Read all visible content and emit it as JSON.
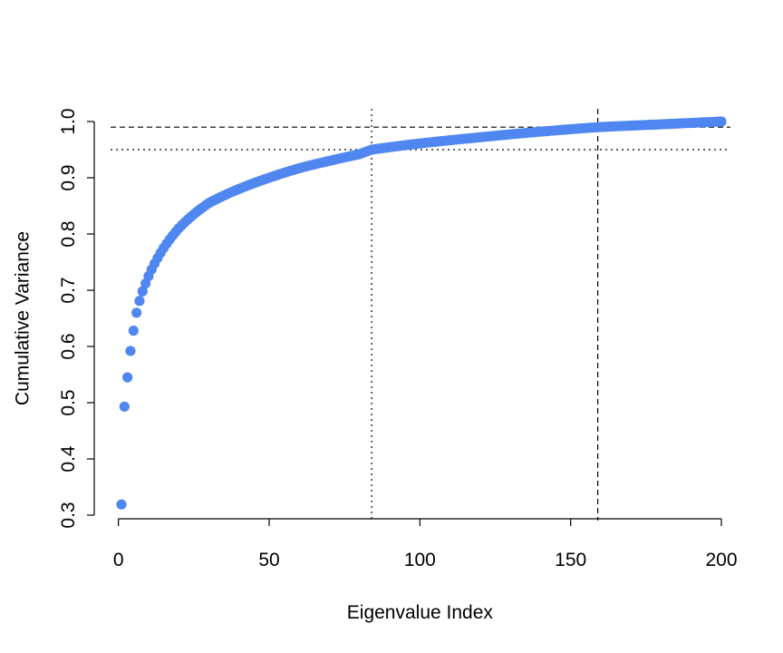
{
  "chart_data": {
    "type": "scatter",
    "title": "",
    "xlabel": "Eigenvalue Index",
    "ylabel": "Cumulative Variance",
    "xlim": [
      1,
      200
    ],
    "ylim": [
      0.3,
      1.0
    ],
    "x_ticks": [
      0,
      50,
      100,
      150,
      200
    ],
    "x_tick_labels": [
      "0",
      "50",
      "100",
      "150",
      "200"
    ],
    "y_ticks": [
      0.3,
      0.4,
      0.5,
      0.6,
      0.7,
      0.8,
      0.9,
      1.0
    ],
    "y_tick_labels": [
      "0.3",
      "0.4",
      "0.5",
      "0.6",
      "0.7",
      "0.8",
      "0.9",
      "1.0"
    ],
    "grid": false,
    "point_color": "#4f86f0",
    "series": [
      {
        "n_points": 200,
        "first_values": [
          0.319,
          0.493,
          0.545,
          0.592,
          0.628,
          0.66,
          0.681,
          0.698,
          0.712,
          0.725
        ],
        "anchor_x": [
          1,
          2,
          3,
          4,
          5,
          6,
          7,
          8,
          9,
          10,
          15,
          20,
          25,
          30,
          40,
          50,
          60,
          70,
          80,
          84,
          100,
          120,
          140,
          159,
          180,
          200
        ],
        "anchor_y": [
          0.319,
          0.493,
          0.545,
          0.592,
          0.628,
          0.66,
          0.681,
          0.698,
          0.712,
          0.725,
          0.775,
          0.81,
          0.835,
          0.855,
          0.88,
          0.9,
          0.917,
          0.93,
          0.942,
          0.95,
          0.961,
          0.972,
          0.982,
          0.99,
          0.995,
          1.0
        ]
      }
    ],
    "reference_lines": [
      {
        "orientation": "horizontal",
        "value": 0.95,
        "style": "dotted"
      },
      {
        "orientation": "horizontal",
        "value": 0.99,
        "style": "dashed"
      },
      {
        "orientation": "vertical",
        "value": 84,
        "style": "dotted"
      },
      {
        "orientation": "vertical",
        "value": 159,
        "style": "dashed"
      }
    ]
  }
}
